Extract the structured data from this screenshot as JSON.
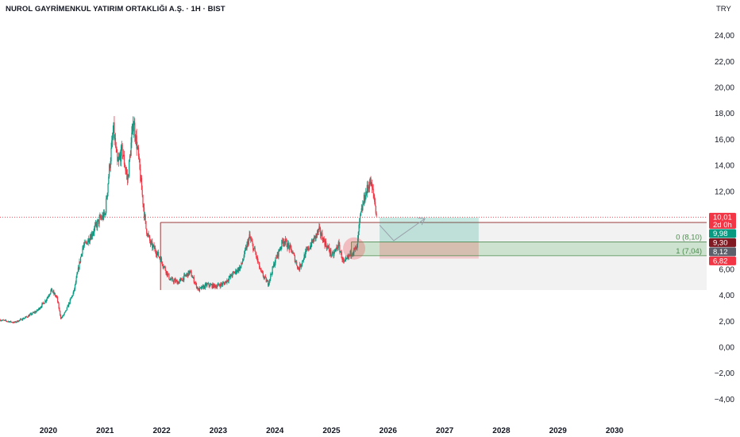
{
  "header": {
    "title": "NUROL GAYRİMENKUL YATIRIM ORTAKLIĞI A.Ş. · 1H · BIST",
    "currency": "TRY"
  },
  "chart_data": {
    "type": "candlestick",
    "y_axis_ticks": [
      "24,00",
      "22,00",
      "20,00",
      "18,00",
      "16,00",
      "14,00",
      "12,00",
      "10,00",
      "8,00",
      "6,00",
      "4,00",
      "2,00",
      "0,00",
      "−2,00",
      "−4,00"
    ],
    "y_axis_values": [
      24,
      22,
      20,
      18,
      16,
      14,
      12,
      10,
      8,
      6,
      4,
      2,
      0,
      -2,
      -4
    ],
    "ylim": [
      -4.6,
      25
    ],
    "x_axis_ticks": [
      "2020",
      "2021",
      "2022",
      "2023",
      "2024",
      "2025",
      "2026",
      "2027",
      "2028",
      "2029",
      "2030"
    ],
    "x_axis_tick_years": [
      2020.0,
      2021.0,
      2022.0,
      2023.0,
      2024.0,
      2025.0,
      2026.0,
      2027.0,
      2028.0,
      2029.0,
      2030.0
    ],
    "xlim": [
      2019.15,
      2030.5
    ],
    "price_path": [
      [
        2019.15,
        2.1
      ],
      [
        2019.4,
        1.9
      ],
      [
        2019.6,
        2.3
      ],
      [
        2019.8,
        2.8
      ],
      [
        2019.95,
        3.6
      ],
      [
        2020.05,
        4.4
      ],
      [
        2020.15,
        3.8
      ],
      [
        2020.22,
        2.2
      ],
      [
        2020.3,
        2.7
      ],
      [
        2020.45,
        4.3
      ],
      [
        2020.6,
        7.6
      ],
      [
        2020.75,
        8.6
      ],
      [
        2020.9,
        9.8
      ],
      [
        2021.0,
        10.2
      ],
      [
        2021.07,
        13.5
      ],
      [
        2021.15,
        16.8
      ],
      [
        2021.22,
        14.0
      ],
      [
        2021.3,
        15.2
      ],
      [
        2021.4,
        12.8
      ],
      [
        2021.5,
        17.5
      ],
      [
        2021.58,
        15.0
      ],
      [
        2021.65,
        12.0
      ],
      [
        2021.72,
        9.2
      ],
      [
        2021.8,
        8.0
      ],
      [
        2021.9,
        7.4
      ],
      [
        2022.0,
        6.6
      ],
      [
        2022.15,
        5.2
      ],
      [
        2022.3,
        5.0
      ],
      [
        2022.5,
        5.8
      ],
      [
        2022.65,
        4.4
      ],
      [
        2022.8,
        4.8
      ],
      [
        2022.95,
        4.7
      ],
      [
        2023.1,
        4.9
      ],
      [
        2023.25,
        5.6
      ],
      [
        2023.4,
        6.2
      ],
      [
        2023.55,
        8.5
      ],
      [
        2023.65,
        7.3
      ],
      [
        2023.75,
        5.8
      ],
      [
        2023.88,
        4.9
      ],
      [
        2024.0,
        6.6
      ],
      [
        2024.15,
        8.3
      ],
      [
        2024.3,
        7.4
      ],
      [
        2024.42,
        6.0
      ],
      [
        2024.55,
        7.3
      ],
      [
        2024.65,
        8.0
      ],
      [
        2024.78,
        9.0
      ],
      [
        2024.9,
        7.9
      ],
      [
        2025.02,
        7.0
      ],
      [
        2025.12,
        7.9
      ],
      [
        2025.22,
        6.4
      ],
      [
        2025.35,
        7.3
      ],
      [
        2025.45,
        7.6
      ],
      [
        2025.5,
        9.8
      ],
      [
        2025.58,
        11.5
      ],
      [
        2025.68,
        12.8
      ],
      [
        2025.75,
        11.6
      ],
      [
        2025.8,
        10.0
      ]
    ],
    "last_price": 10.01,
    "price_line_value": 10.01,
    "range_box": {
      "x_start": 2021.98,
      "x_end": 2030.5,
      "y_top": 9.6,
      "y_bottom": 4.4
    },
    "fib_levels": [
      {
        "label": "0 (8,10)",
        "value": 8.1
      },
      {
        "label": "1 (7,04)",
        "value": 7.04
      }
    ],
    "position_tool": {
      "x_start": 2025.85,
      "x_end": 2027.6,
      "entry": 8.1,
      "target": 9.98,
      "stop": 6.82
    },
    "projection_path": [
      [
        2025.85,
        9.4
      ],
      [
        2026.1,
        8.2
      ],
      [
        2026.65,
        9.9
      ]
    ],
    "highlight_circle": {
      "x": 2025.4,
      "y": 7.6
    },
    "price_badges": [
      {
        "text": "10,01",
        "sub": "2d 0h",
        "value": 10.01,
        "color": "#f23645"
      },
      {
        "text": "9,98",
        "value": 9.98,
        "color": "#089981"
      },
      {
        "text": "9,30",
        "value": 9.3,
        "color": "#801922"
      },
      {
        "text": "8,12",
        "value": 8.12,
        "color": "#5d606b"
      },
      {
        "text": "6,82",
        "value": 6.82,
        "color": "#f23645"
      }
    ],
    "colors": {
      "up": "#089981",
      "down": "#f23645",
      "grid": "#e9e9ea",
      "fib": "#4caf50"
    },
    "grid": false
  }
}
